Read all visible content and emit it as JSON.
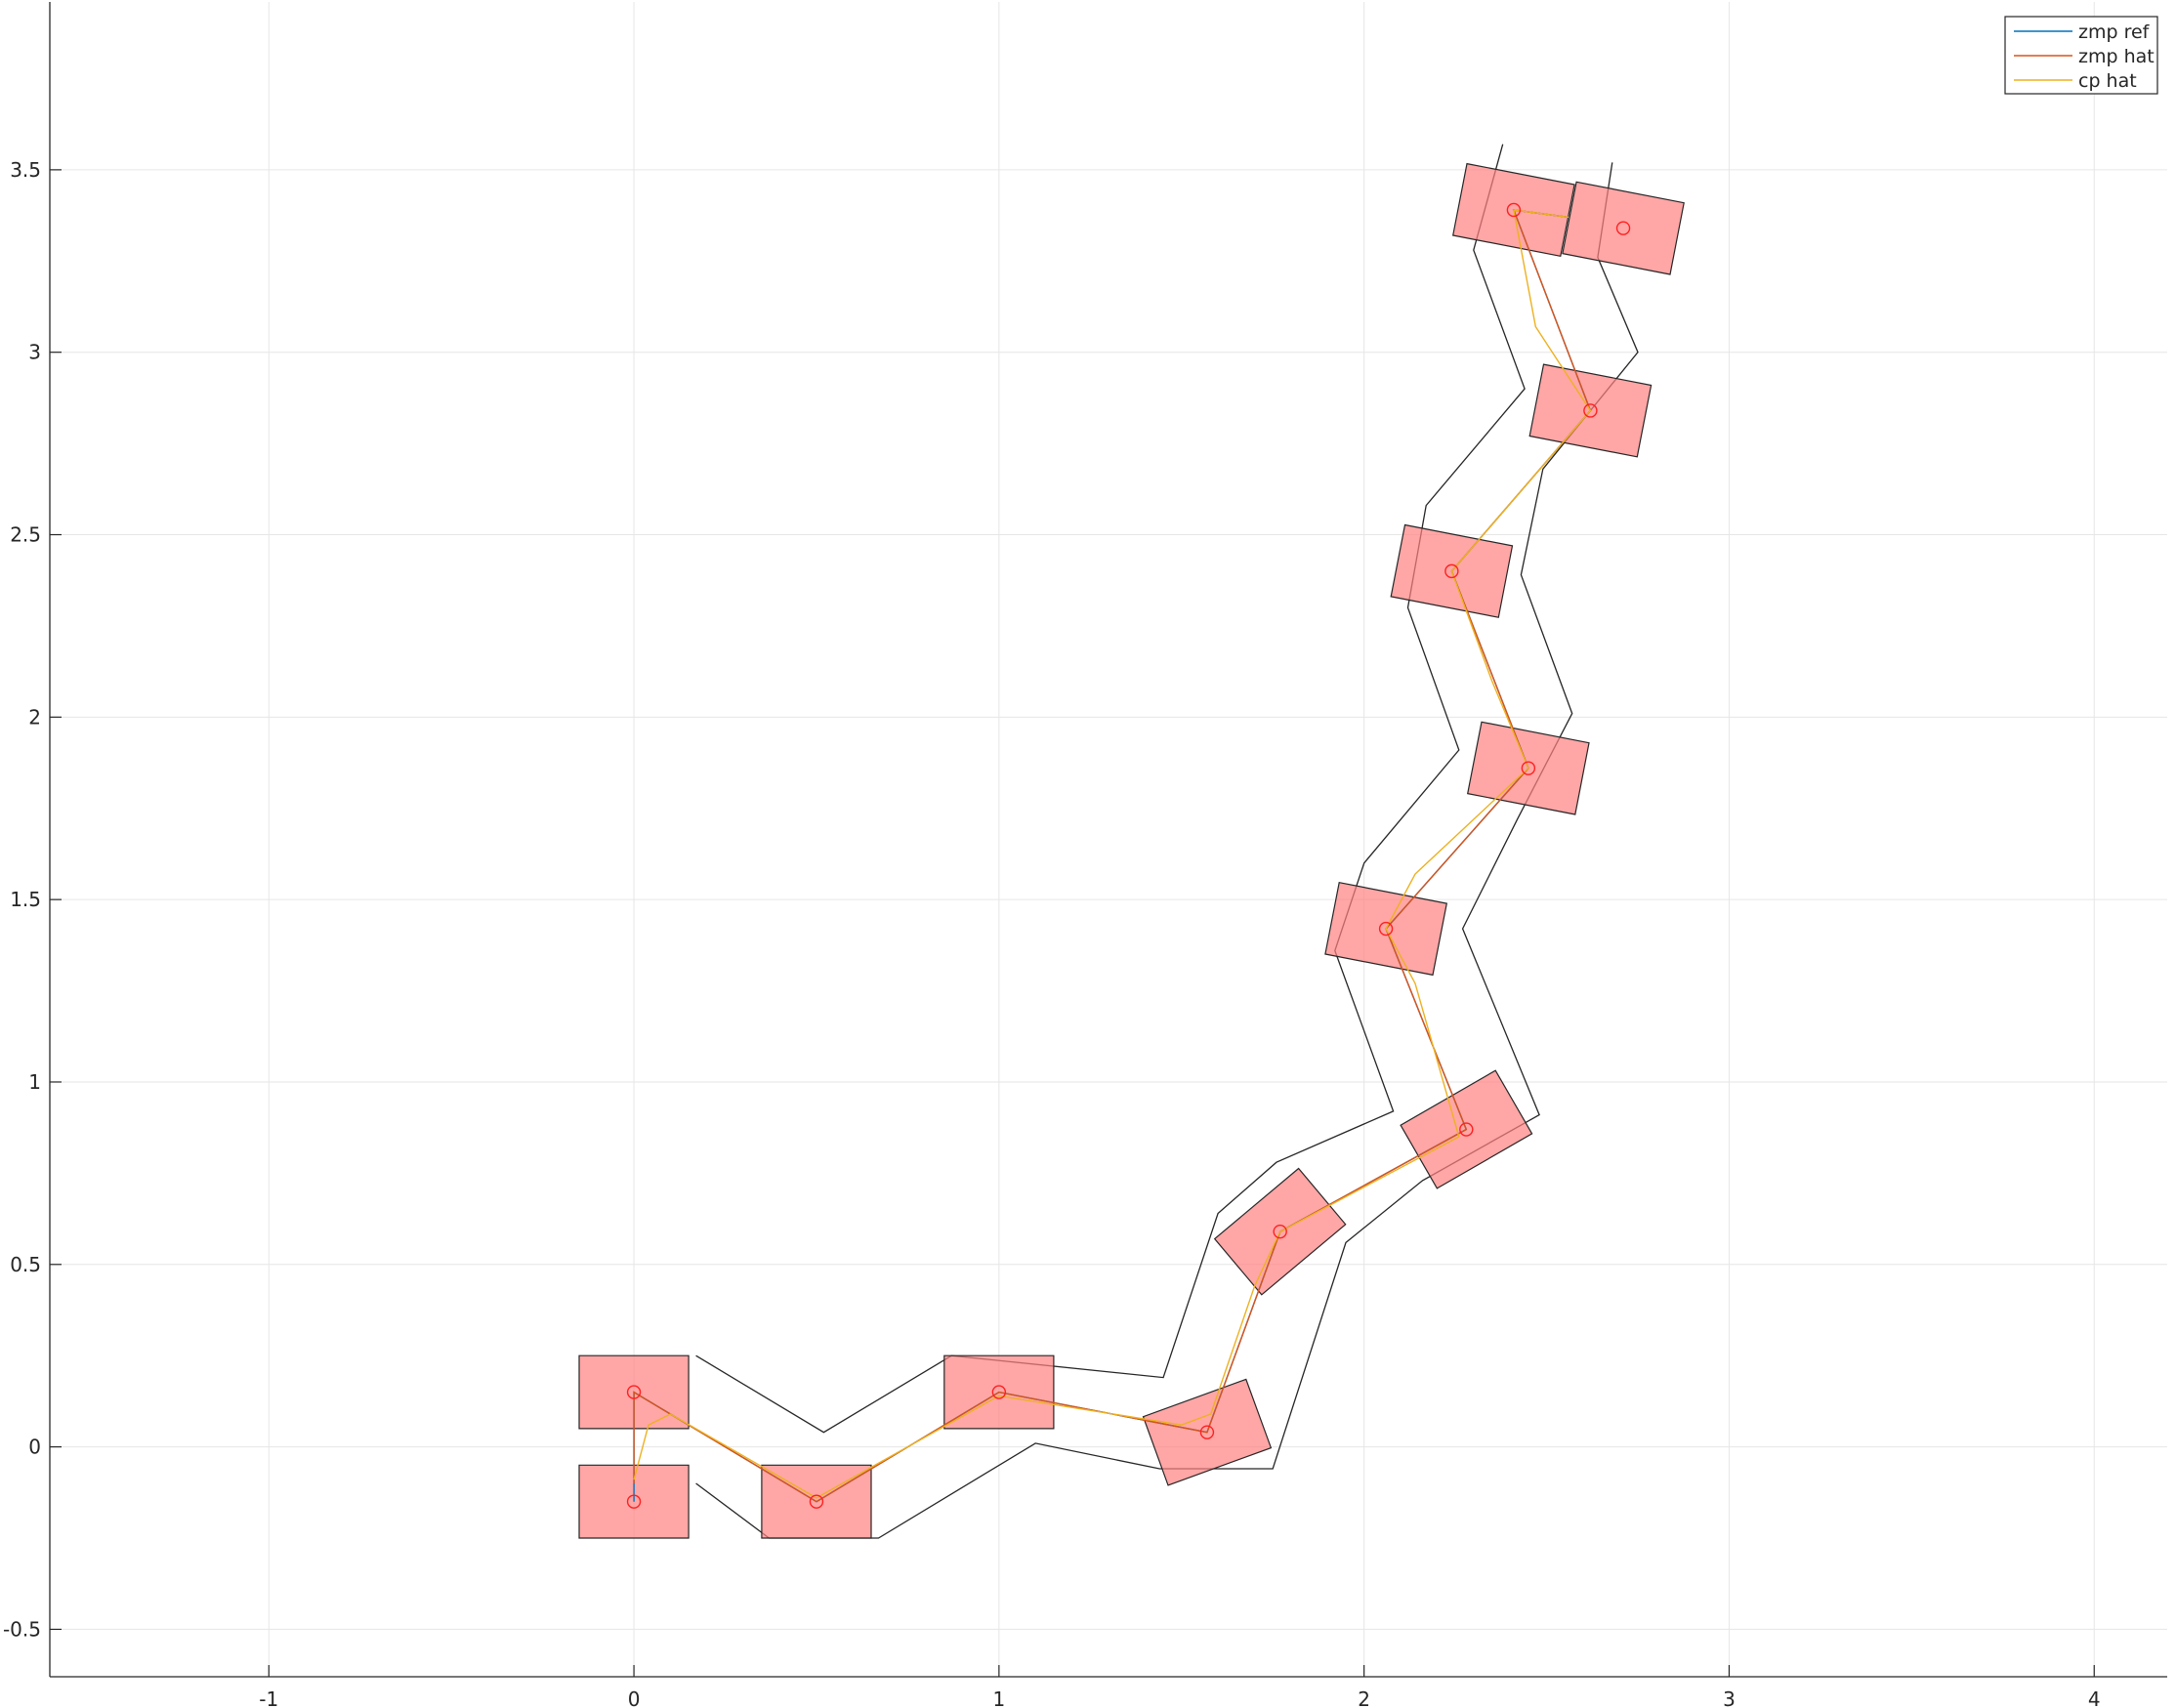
{
  "chart_data": {
    "type": "scatter",
    "title": "",
    "xlabel": "",
    "ylabel": "",
    "xlim": [
      -1.6,
      4.2
    ],
    "ylim": [
      -0.63,
      3.96
    ],
    "grid": true,
    "legend_position": "top-right",
    "x_ticks": [
      -1,
      0,
      1,
      2,
      3,
      4
    ],
    "y_ticks": [
      -0.5,
      0,
      0.5,
      1,
      1.5,
      2,
      2.5,
      3,
      3.5
    ],
    "x_tick_labels": [
      "-1",
      "0",
      "1",
      "2",
      "3",
      "4"
    ],
    "y_tick_labels": [
      "-0.5",
      "0",
      "0.5",
      "1",
      "1.5",
      "2",
      "2.5",
      "3",
      "3.5"
    ],
    "legend": [
      {
        "name": "zmp ref",
        "color": "#0072bd"
      },
      {
        "name": "zmp hat",
        "color": "#d95319"
      },
      {
        "name": "cp hat",
        "color": "#edb120"
      }
    ],
    "footprints": [
      {
        "x": 0.0,
        "y": 0.15,
        "angle_deg": 0
      },
      {
        "x": 0.0,
        "y": -0.15,
        "angle_deg": 0
      },
      {
        "x": 0.5,
        "y": -0.15,
        "angle_deg": 0
      },
      {
        "x": 1.0,
        "y": 0.15,
        "angle_deg": 0
      },
      {
        "x": 1.57,
        "y": 0.04,
        "angle_deg": 20
      },
      {
        "x": 1.77,
        "y": 0.59,
        "angle_deg": 40
      },
      {
        "x": 2.28,
        "y": 0.87,
        "angle_deg": 30
      },
      {
        "x": 2.06,
        "y": 1.42,
        "angle_deg": -11
      },
      {
        "x": 2.45,
        "y": 1.86,
        "angle_deg": -11
      },
      {
        "x": 2.24,
        "y": 2.4,
        "angle_deg": -11
      },
      {
        "x": 2.62,
        "y": 2.84,
        "angle_deg": -11
      },
      {
        "x": 2.41,
        "y": 3.39,
        "angle_deg": -11
      },
      {
        "x": 2.71,
        "y": 3.34,
        "angle_deg": -11
      }
    ],
    "footprint_size": {
      "length": 0.3,
      "width": 0.2
    },
    "footprint_color": "#ff8080",
    "zmp_ref": [
      [
        0.0,
        0.15
      ],
      [
        0.0,
        -0.15
      ],
      [
        0.0,
        0.15
      ],
      [
        0.5,
        -0.15
      ],
      [
        1.0,
        0.15
      ],
      [
        1.57,
        0.04
      ],
      [
        1.77,
        0.59
      ],
      [
        2.28,
        0.87
      ],
      [
        2.06,
        1.42
      ],
      [
        2.45,
        1.86
      ],
      [
        2.24,
        2.4
      ],
      [
        2.62,
        2.84
      ],
      [
        2.41,
        3.39
      ],
      [
        2.56,
        3.37
      ]
    ],
    "zmp_hat": [
      [
        0.0,
        0.15
      ],
      [
        0.0,
        -0.1
      ],
      [
        0.0,
        0.15
      ],
      [
        0.5,
        -0.15
      ],
      [
        1.0,
        0.15
      ],
      [
        1.57,
        0.04
      ],
      [
        1.77,
        0.59
      ],
      [
        2.28,
        0.87
      ],
      [
        2.06,
        1.42
      ],
      [
        2.45,
        1.86
      ],
      [
        2.24,
        2.4
      ],
      [
        2.62,
        2.84
      ],
      [
        2.41,
        3.39
      ],
      [
        2.56,
        3.37
      ]
    ],
    "cp_hat": [
      [
        0.0,
        -0.09
      ],
      [
        0.04,
        0.06
      ],
      [
        0.1,
        0.09
      ],
      [
        0.5,
        -0.14
      ],
      [
        1.0,
        0.14
      ],
      [
        1.5,
        0.06
      ],
      [
        1.58,
        0.09
      ],
      [
        1.7,
        0.44
      ],
      [
        1.77,
        0.59
      ],
      [
        2.26,
        0.85
      ],
      [
        2.14,
        1.27
      ],
      [
        2.06,
        1.42
      ],
      [
        2.14,
        1.57
      ],
      [
        2.45,
        1.86
      ],
      [
        2.35,
        2.1
      ],
      [
        2.24,
        2.4
      ],
      [
        2.62,
        2.84
      ],
      [
        2.47,
        3.07
      ],
      [
        2.41,
        3.39
      ],
      [
        2.56,
        3.37
      ]
    ],
    "support_region_left": [
      [
        0.17,
        0.25
      ],
      [
        0.52,
        0.04
      ],
      [
        0.87,
        0.25
      ],
      [
        1.45,
        0.19
      ],
      [
        1.6,
        0.64
      ],
      [
        1.76,
        0.78
      ],
      [
        2.08,
        0.92
      ],
      [
        1.92,
        1.36
      ],
      [
        2.0,
        1.6
      ],
      [
        2.26,
        1.91
      ],
      [
        2.12,
        2.3
      ],
      [
        2.17,
        2.58
      ],
      [
        2.44,
        2.9
      ],
      [
        2.3,
        3.28
      ],
      [
        2.38,
        3.57
      ]
    ],
    "support_region_right": [
      [
        0.17,
        -0.1
      ],
      [
        0.37,
        -0.25
      ],
      [
        0.67,
        -0.25
      ],
      [
        1.1,
        0.01
      ],
      [
        1.44,
        -0.06
      ],
      [
        1.75,
        -0.06
      ],
      [
        1.95,
        0.56
      ],
      [
        2.16,
        0.73
      ],
      [
        2.48,
        0.91
      ],
      [
        2.27,
        1.42
      ],
      [
        2.42,
        1.72
      ],
      [
        2.57,
        2.01
      ],
      [
        2.43,
        2.39
      ],
      [
        2.49,
        2.68
      ],
      [
        2.75,
        3.0
      ],
      [
        2.64,
        3.26
      ],
      [
        2.68,
        3.52
      ]
    ]
  }
}
